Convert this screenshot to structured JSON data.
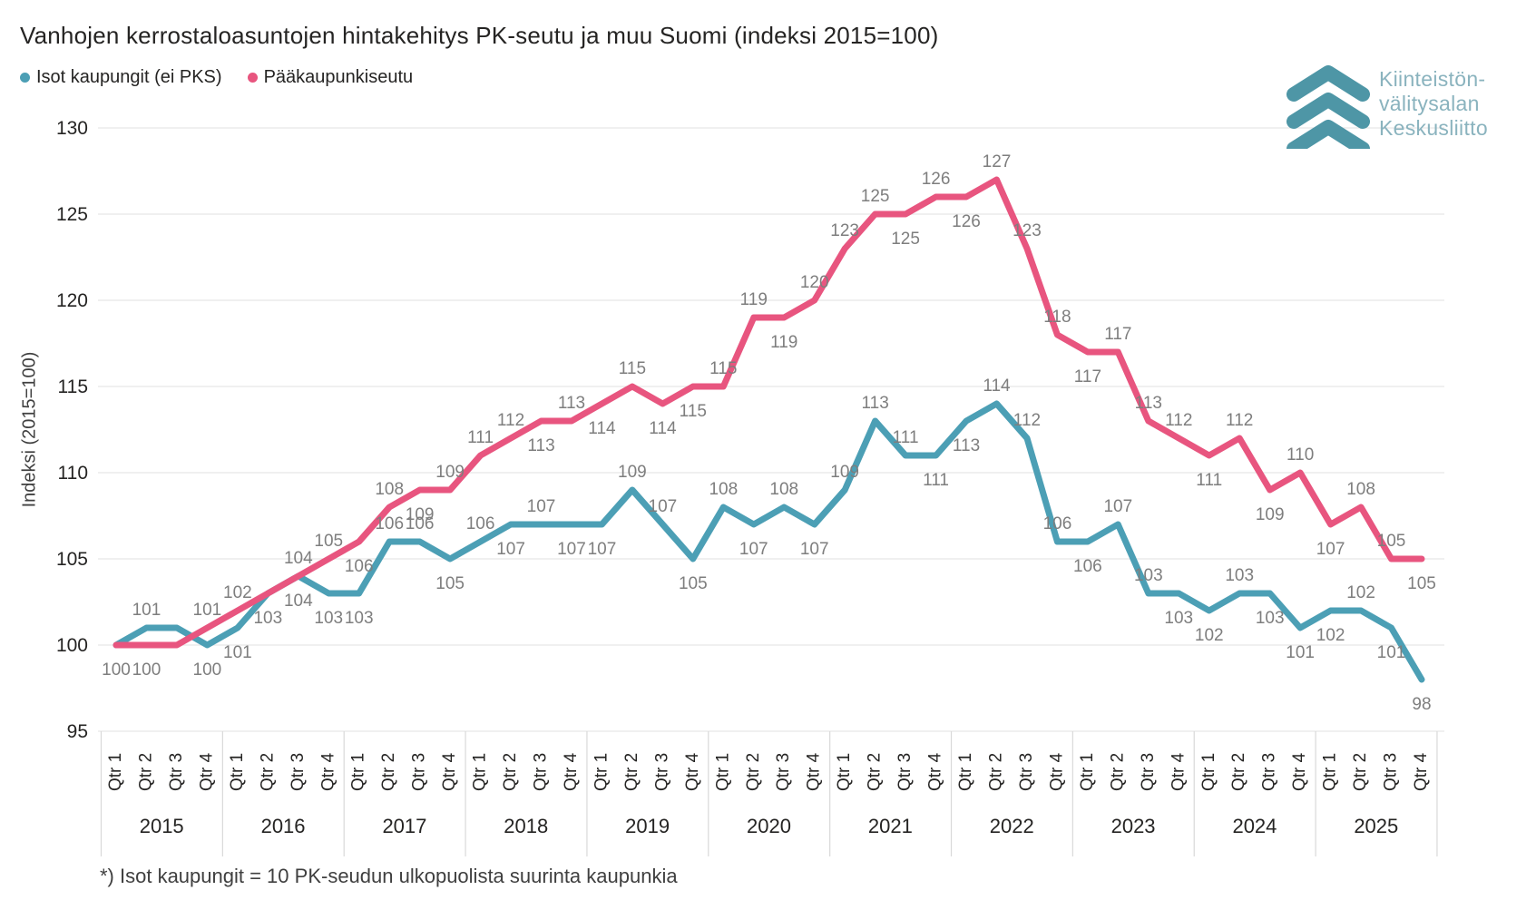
{
  "header": {
    "title": "Vanhojen kerrostaloasuntojen hintakehitys PK-seutu ja muu Suomi (indeksi 2015=100)"
  },
  "legend": {
    "items": [
      {
        "label": "Isot kaupungit (ei PKS)",
        "color": "#4C9FB5"
      },
      {
        "label": "Pääkaupunkiseutu",
        "color": "#E8557F"
      }
    ]
  },
  "logo": {
    "lines": [
      "Kiinteistön-",
      "välitysalan",
      "Keskusliitto"
    ],
    "chevron_color": "#4E96A6",
    "text_color": "#8AB3BE"
  },
  "footnote": "*) Isot kaupungit = 10 PK-seudun ulkopuolista suurinta kaupunkia",
  "chart_data": {
    "type": "line",
    "title": "Vanhojen kerrostaloasuntojen hintakehitys PK-seutu ja muu Suomi (indeksi 2015=100)",
    "ylabel": "Indeksi (2015=100)",
    "ylim": [
      95,
      130
    ],
    "y_ticks": [
      95,
      100,
      105,
      110,
      115,
      120,
      125,
      130
    ],
    "grid": true,
    "legend_position": "top-left",
    "years": [
      "2015",
      "2016",
      "2017",
      "2018",
      "2019",
      "2020",
      "2021",
      "2022",
      "2023",
      "2024",
      "2025"
    ],
    "quarter_labels": [
      "Qtr 1",
      "Qtr 2",
      "Qtr 3",
      "Qtr 4"
    ],
    "data_label_color": "#7E7E7E",
    "axis_text_color": "#252423",
    "gridline_color": "#E6E6E6",
    "separator_color": "#D9D9D9",
    "series": [
      {
        "name": "Isot kaupungit (ei PKS)",
        "color": "#4C9FB5",
        "values": [
          100,
          101,
          101,
          100,
          101,
          103,
          104,
          103,
          103,
          106,
          106,
          105,
          106,
          107,
          107,
          107,
          107,
          109,
          107,
          105,
          108,
          107,
          108,
          107,
          109,
          113,
          111,
          111,
          113,
          114,
          112,
          106,
          106,
          107,
          103,
          103,
          102,
          103,
          103,
          101,
          102,
          102,
          101,
          98
        ],
        "label_pos": [
          "h",
          "a",
          "h",
          "b",
          "b",
          "b",
          "b",
          "b",
          "b",
          "a",
          "a",
          "b",
          "a",
          "b",
          "a",
          "b",
          "b",
          "a",
          "a",
          "b",
          "a",
          "b",
          "a",
          "b",
          "a",
          "a",
          "a",
          "b",
          "b",
          "a",
          "a",
          "a",
          "b",
          "a",
          "a",
          "b",
          "b",
          "a",
          "b",
          "b",
          "b",
          "a",
          "b",
          "b"
        ]
      },
      {
        "name": "Pääkaupunkiseutu",
        "color": "#E8557F",
        "values": [
          100,
          100,
          100,
          101,
          102,
          103,
          104,
          105,
          106,
          108,
          109,
          109,
          111,
          112,
          113,
          113,
          114,
          115,
          114,
          115,
          115,
          119,
          119,
          120,
          123,
          125,
          125,
          126,
          126,
          127,
          123,
          118,
          117,
          117,
          113,
          112,
          111,
          112,
          109,
          110,
          107,
          108,
          105,
          105
        ],
        "label_pos": [
          "b",
          "b",
          "h",
          "a",
          "a",
          "h",
          "a",
          "a",
          "b",
          "a",
          "b",
          "a",
          "a",
          "a",
          "b",
          "a",
          "b",
          "a",
          "b",
          "b",
          "a",
          "a",
          "b",
          "a",
          "a",
          "a",
          "b",
          "a",
          "b",
          "a",
          "a",
          "a",
          "b",
          "a",
          "a",
          "a",
          "b",
          "a",
          "b",
          "a",
          "b",
          "a",
          "a",
          "b"
        ]
      }
    ]
  }
}
